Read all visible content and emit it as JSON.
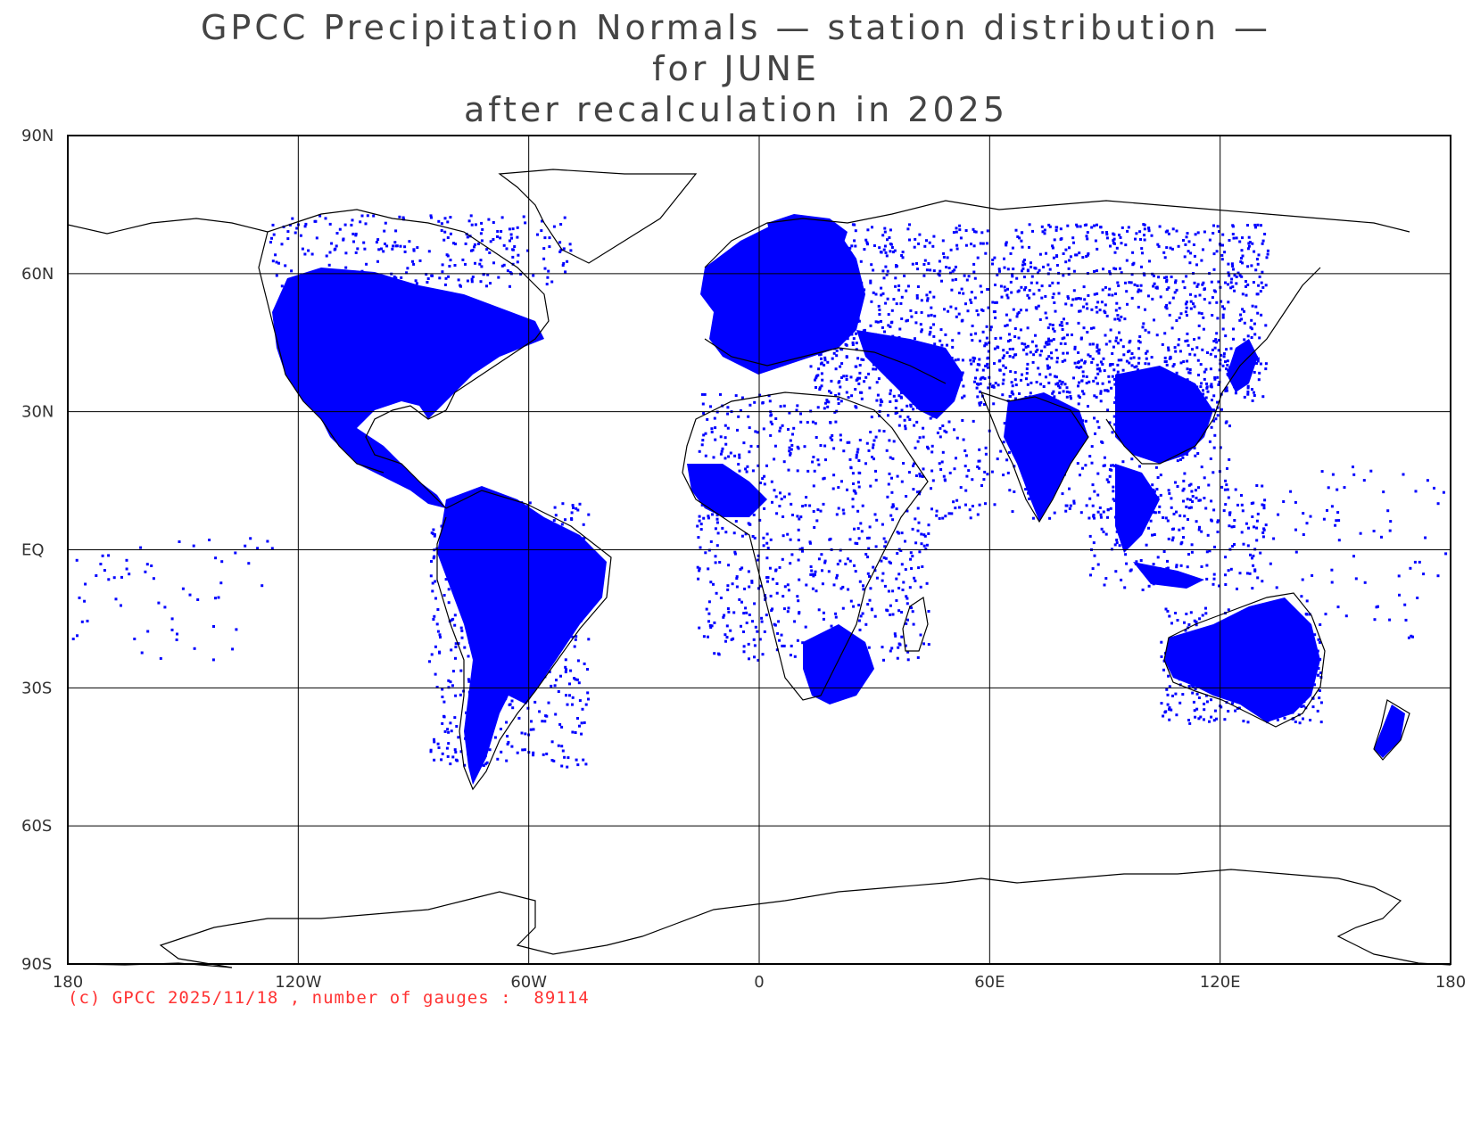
{
  "title": {
    "line1": "GPCC Precipitation Normals — station distribution —",
    "line2": "for JUNE",
    "line3": "after recalculation in 2025"
  },
  "axes": {
    "y_ticks": [
      {
        "value": 90,
        "label": "90N"
      },
      {
        "value": 60,
        "label": "60N"
      },
      {
        "value": 30,
        "label": "30N"
      },
      {
        "value": 0,
        "label": "EQ"
      },
      {
        "value": -30,
        "label": "30S"
      },
      {
        "value": -60,
        "label": "60S"
      },
      {
        "value": -90,
        "label": "90S"
      }
    ],
    "x_ticks": [
      {
        "value": -180,
        "label": "180"
      },
      {
        "value": -120,
        "label": "120W"
      },
      {
        "value": -60,
        "label": "60W"
      },
      {
        "value": 0,
        "label": "0"
      },
      {
        "value": 60,
        "label": "60E"
      },
      {
        "value": 120,
        "label": "120E"
      },
      {
        "value": 180,
        "label": "180"
      }
    ],
    "lon_range": [
      -180,
      180
    ],
    "lat_range": [
      -90,
      90
    ],
    "grid": true
  },
  "credit": "(c) GPCC 2025/11/18 , number of gauges :  89114",
  "colors": {
    "stations": "#0000ff",
    "coastline": "#000000",
    "grid": "#000000",
    "credit": "#ff3333",
    "title": "#444444"
  }
}
